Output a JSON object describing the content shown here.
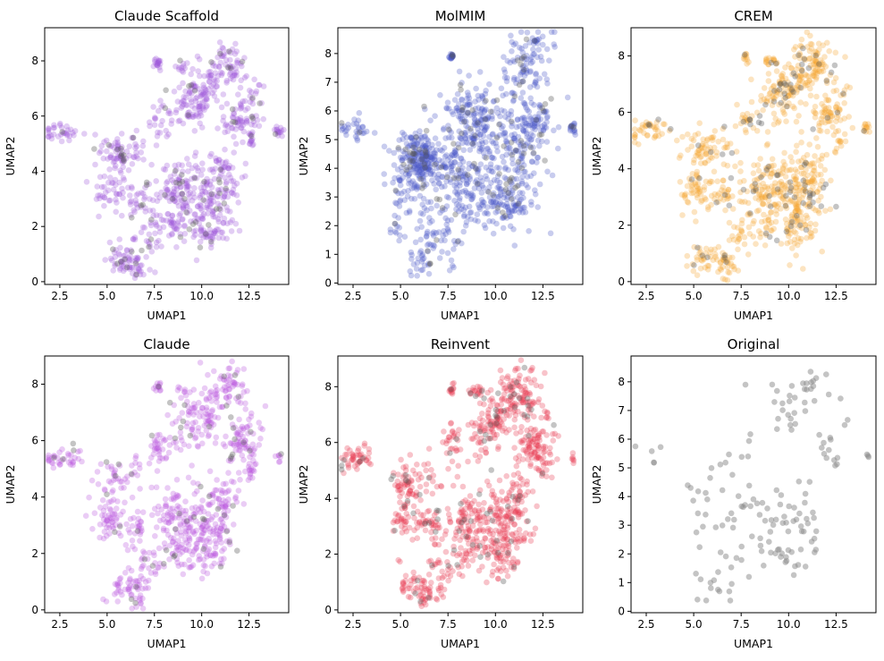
{
  "chart_data": [
    {
      "type": "scatter",
      "title": "Claude Scaffold",
      "xlabel": "UMAP1",
      "ylabel": "UMAP2",
      "xlim": [
        1.7,
        14.6
      ],
      "ylim": [
        -0.1,
        9.2
      ],
      "xticks": [
        "2.5",
        "5.0",
        "7.5",
        "10.0",
        "12.5"
      ],
      "yticks": [
        "0",
        "2",
        "4",
        "6",
        "8"
      ],
      "grid": false,
      "series": [
        {
          "color": "#9e59d9",
          "points": 900,
          "opacity": 0.3
        },
        {
          "color": "#555555",
          "points": 80,
          "opacity": 0.35
        }
      ]
    },
    {
      "type": "scatter",
      "title": "MolMIM",
      "xlabel": "UMAP1",
      "ylabel": "UMAP2",
      "xlim": [
        1.7,
        14.6
      ],
      "ylim": [
        -0.05,
        8.9
      ],
      "xticks": [
        "2.5",
        "5.0",
        "7.5",
        "10.0",
        "12.5"
      ],
      "yticks": [
        "0",
        "1",
        "2",
        "3",
        "4",
        "5",
        "6",
        "7",
        "8"
      ],
      "grid": false,
      "series": [
        {
          "color": "#4a55c8",
          "points": 1100,
          "opacity": 0.3
        },
        {
          "color": "#555555",
          "points": 120,
          "opacity": 0.35
        }
      ]
    },
    {
      "type": "scatter",
      "title": "CREM",
      "xlabel": "UMAP1",
      "ylabel": "UMAP2",
      "xlim": [
        1.7,
        14.6
      ],
      "ylim": [
        -0.1,
        9.0
      ],
      "xticks": [
        "2.5",
        "5.0",
        "7.5",
        "10.0",
        "12.5"
      ],
      "yticks": [
        "0",
        "2",
        "4",
        "6",
        "8"
      ],
      "grid": false,
      "series": [
        {
          "color": "#f5a433",
          "points": 900,
          "opacity": 0.3
        },
        {
          "color": "#555555",
          "points": 110,
          "opacity": 0.35
        }
      ]
    },
    {
      "type": "scatter",
      "title": "Claude",
      "xlabel": "UMAP1",
      "ylabel": "UMAP2",
      "xlim": [
        1.7,
        14.6
      ],
      "ylim": [
        -0.1,
        9.0
      ],
      "xticks": [
        "2.5",
        "5.0",
        "7.5",
        "10.0",
        "12.5"
      ],
      "yticks": [
        "0",
        "2",
        "4",
        "6",
        "8"
      ],
      "grid": false,
      "series": [
        {
          "color": "#bb55dd",
          "points": 800,
          "opacity": 0.3
        },
        {
          "color": "#555555",
          "points": 60,
          "opacity": 0.35
        }
      ]
    },
    {
      "type": "scatter",
      "title": "Reinvent",
      "xlabel": "UMAP1",
      "ylabel": "UMAP2",
      "xlim": [
        1.7,
        14.6
      ],
      "ylim": [
        -0.1,
        9.1
      ],
      "xticks": [
        "2.5",
        "5.0",
        "7.5",
        "10.0",
        "12.5"
      ],
      "yticks": [
        "0",
        "2",
        "4",
        "6",
        "8"
      ],
      "grid": false,
      "series": [
        {
          "color": "#e8394f",
          "points": 950,
          "opacity": 0.3
        },
        {
          "color": "#555555",
          "points": 90,
          "opacity": 0.35
        }
      ]
    },
    {
      "type": "scatter",
      "title": "Original",
      "xlabel": "UMAP1",
      "ylabel": "UMAP2",
      "xlim": [
        1.7,
        14.6
      ],
      "ylim": [
        -0.05,
        8.9
      ],
      "xticks": [
        "2.5",
        "5.0",
        "7.5",
        "10.0",
        "12.5"
      ],
      "yticks": [
        "0",
        "1",
        "2",
        "3",
        "4",
        "5",
        "6",
        "7",
        "8"
      ],
      "grid": false,
      "series": [
        {
          "color": "#8a8a8a",
          "points": 170,
          "opacity": 0.5
        }
      ]
    }
  ]
}
